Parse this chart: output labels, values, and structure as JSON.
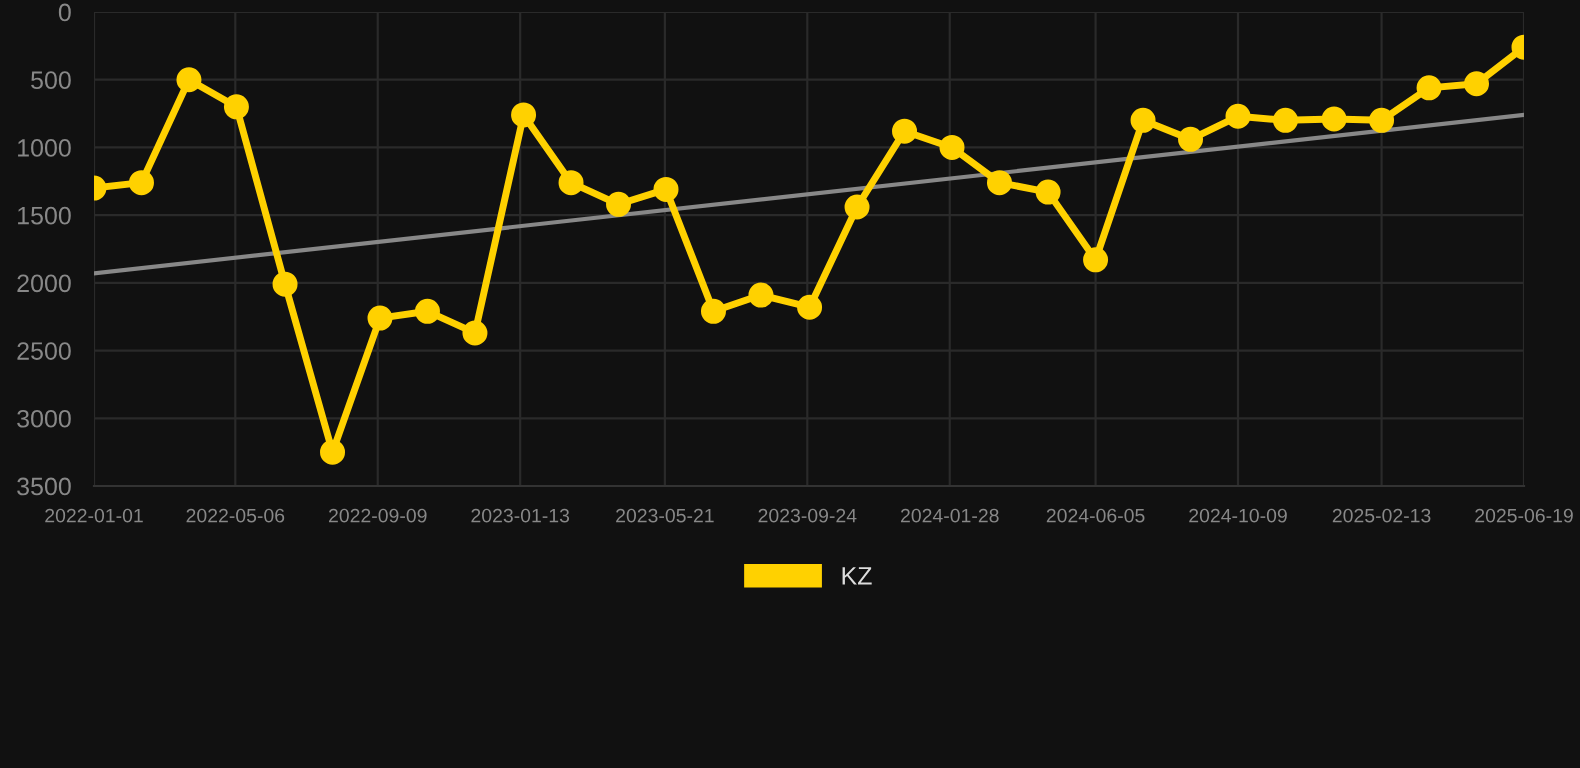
{
  "chart_data": {
    "type": "line",
    "x": [
      "2022-01-01",
      "2022-02-12",
      "2022-03-26",
      "2022-05-07",
      "2022-06-19",
      "2022-07-31",
      "2022-09-11",
      "2022-10-23",
      "2022-12-04",
      "2023-01-16",
      "2023-02-27",
      "2023-04-10",
      "2023-05-22",
      "2023-07-03",
      "2023-08-14",
      "2023-09-26",
      "2023-11-07",
      "2023-12-19",
      "2024-01-30",
      "2024-03-12",
      "2024-04-24",
      "2024-06-05",
      "2024-07-17",
      "2024-08-28",
      "2024-10-09",
      "2024-11-20",
      "2025-01-02",
      "2025-02-13",
      "2025-03-27",
      "2025-05-08",
      "2025-06-19"
    ],
    "series": [
      {
        "name": "KZ",
        "color": "#ffd100",
        "marker": "circle",
        "values": [
          1300,
          1260,
          500,
          700,
          2010,
          3250,
          2260,
          2210,
          2370,
          760,
          1260,
          1420,
          1310,
          2210,
          2090,
          2180,
          1440,
          880,
          1000,
          1260,
          1330,
          1830,
          800,
          940,
          770,
          800,
          790,
          800,
          560,
          530,
          260
        ]
      },
      {
        "type": "line",
        "color": "#888888",
        "marker": "none",
        "x": [
          "2022-01-01",
          "2025-06-19"
        ],
        "values": [
          1930,
          760
        ]
      }
    ],
    "ylim": [
      3500,
      0
    ],
    "yticks": [
      0,
      500,
      1000,
      1500,
      2000,
      2500,
      3000,
      3500
    ],
    "xlim": [
      "2022-01-01",
      "2025-06-19"
    ],
    "xticks": [
      "2022-01-01",
      "2022-05-06",
      "2022-09-09",
      "2023-01-13",
      "2023-05-21",
      "2023-09-24",
      "2024-01-28",
      "2024-06-05",
      "2024-10-09",
      "2025-02-13",
      "2025-06-19"
    ],
    "grid": true,
    "legend": "bottom",
    "line_style": "solid"
  }
}
